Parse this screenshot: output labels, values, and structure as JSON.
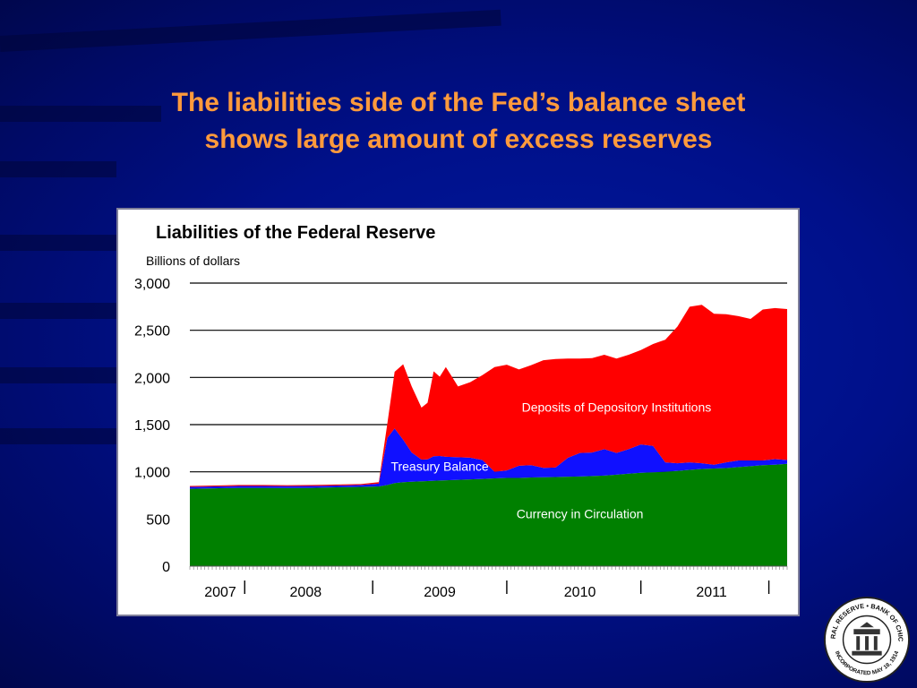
{
  "slide": {
    "title_line1": "The liabilities side of the Fed’s balance sheet",
    "title_line2": "shows large amount of excess reserves"
  },
  "colors": {
    "background": "#00108a",
    "title": "#ff9a3c",
    "currency": "#008000",
    "treasury": "#1010ff",
    "deposits": "#ff0000"
  },
  "seal": {
    "text_top": "FEDERAL RESERVE • BANK OF CHICAGO",
    "text_bottom": "INCORPORATED MAY 18, 1914"
  },
  "chart_data": {
    "type": "area",
    "stacked": true,
    "title": "Liabilities of the Federal Reserve",
    "subtitle": "Billions of dollars",
    "xlabel": "",
    "ylabel": "",
    "ylim": [
      0,
      3000
    ],
    "xlim": [
      2007.0,
      2011.9
    ],
    "y_ticks": [
      "0",
      "500",
      "1,000",
      "1,500",
      "2,000",
      "2,500",
      "3,000"
    ],
    "y_tick_values": [
      0,
      500,
      1000,
      1500,
      2000,
      2500,
      3000
    ],
    "grid": true,
    "x_tick_labels": [
      {
        "label": "2007",
        "x": 2007.25
      },
      {
        "label": "2008",
        "x": 2007.95
      },
      {
        "label": "2009",
        "x": 2009.05
      },
      {
        "label": "2010",
        "x": 2010.2
      },
      {
        "label": "2011",
        "x": 2011.28
      }
    ],
    "x_separators": [
      2007.45,
      2008.5,
      2009.6,
      2010.7,
      2011.75
    ],
    "x": [
      2007.0,
      2007.2,
      2007.4,
      2007.6,
      2007.8,
      2008.0,
      2008.2,
      2008.4,
      2008.55,
      2008.62,
      2008.68,
      2008.75,
      2008.82,
      2008.9,
      2008.95,
      2009.0,
      2009.05,
      2009.1,
      2009.2,
      2009.3,
      2009.4,
      2009.5,
      2009.6,
      2009.7,
      2009.8,
      2009.9,
      2010.0,
      2010.1,
      2010.2,
      2010.3,
      2010.4,
      2010.5,
      2010.6,
      2010.7,
      2010.8,
      2010.9,
      2011.0,
      2011.1,
      2011.2,
      2011.3,
      2011.4,
      2011.5,
      2011.6,
      2011.7,
      2011.8,
      2011.9
    ],
    "series": [
      {
        "name": "Currency in Circulation",
        "values": [
          820,
          825,
          830,
          830,
          828,
          830,
          835,
          840,
          845,
          860,
          880,
          890,
          895,
          900,
          902,
          905,
          908,
          910,
          915,
          920,
          925,
          930,
          935,
          935,
          940,
          942,
          945,
          948,
          950,
          955,
          960,
          970,
          980,
          990,
          995,
          1000,
          1010,
          1020,
          1030,
          1035,
          1040,
          1050,
          1060,
          1070,
          1075,
          1085
        ]
      },
      {
        "name": "Treasury Balance",
        "values": [
          20,
          20,
          20,
          20,
          20,
          20,
          20,
          20,
          30,
          500,
          580,
          450,
          310,
          230,
          230,
          260,
          260,
          250,
          240,
          230,
          200,
          70,
          80,
          130,
          130,
          100,
          100,
          200,
          250,
          250,
          280,
          230,
          260,
          300,
          280,
          100,
          80,
          80,
          60,
          40,
          60,
          70,
          60,
          50,
          60,
          40
        ]
      },
      {
        "name": "Deposits of Depository Institutions",
        "values": [
          10,
          10,
          10,
          10,
          10,
          10,
          10,
          10,
          15,
          150,
          600,
          800,
          700,
          550,
          600,
          900,
          840,
          950,
          750,
          800,
          900,
          1110,
          1120,
          1020,
          1060,
          1140,
          1150,
          1052,
          1000,
          1000,
          1000,
          1000,
          1000,
          1000,
          1080,
          1300,
          1450,
          1650,
          1680,
          1600,
          1570,
          1530,
          1500,
          1600,
          1600,
          1600
        ]
      }
    ],
    "series_labels": [
      {
        "series": "Currency in Circulation",
        "text": "Currency in Circulation",
        "x": 2010.2,
        "y": 510,
        "color": "#ffffff"
      },
      {
        "series": "Treasury Balance",
        "text": "Treasury Balance",
        "x": 2009.05,
        "y": 1010,
        "color": "#ffffff"
      },
      {
        "series": "Deposits of Depository Institutions",
        "text": "Deposits of Depository Institutions",
        "x": 2010.5,
        "y": 1640,
        "color": "#ffffff"
      }
    ]
  }
}
